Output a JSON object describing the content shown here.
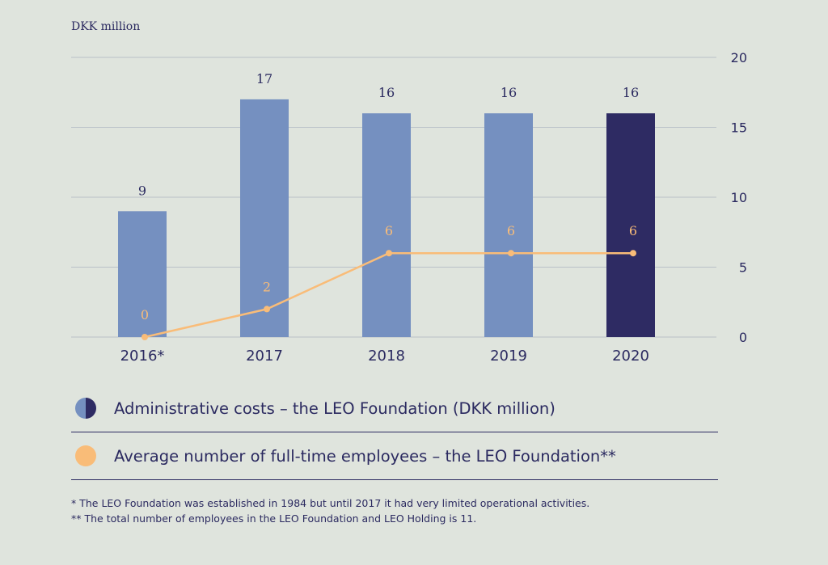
{
  "chart_data": {
    "type": "bar",
    "ylabel": "DKK million",
    "categories": [
      "2016*",
      "2017",
      "2018",
      "2019",
      "2020"
    ],
    "ylim": [
      0,
      20
    ],
    "yticks": [
      "0",
      "5",
      "10",
      "15",
      "20"
    ],
    "grid": true,
    "series": [
      {
        "name": "Administrative costs – the LEO Foundation (DKK million)",
        "type": "bar",
        "values": [
          9,
          17,
          16,
          16,
          16
        ],
        "labels": [
          "9",
          "17",
          "16",
          "16",
          "16"
        ],
        "color": "#7590c0",
        "highlight_color": "#2e2b63",
        "highlight_index": 4
      },
      {
        "name": "Average number of full-time employees – the LEO Foundation**",
        "type": "line",
        "values": [
          0,
          2,
          6,
          6,
          6
        ],
        "labels": [
          "0",
          "2",
          "6",
          "6",
          "6"
        ],
        "color": "#f9bc78"
      }
    ]
  },
  "footnotes": [
    "* The LEO Foundation was established in 1984 but until 2017 it had very limited operational activities.",
    "** The total number of employees in the LEO Foundation and LEO Holding is 11."
  ]
}
